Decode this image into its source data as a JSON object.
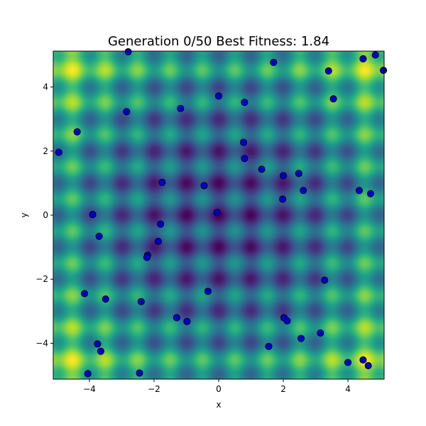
{
  "chart_data": {
    "type": "scatter",
    "title": "Generation 0/50   Best Fitness: 1.84",
    "xlabel": "x",
    "ylabel": "y",
    "xlim": [
      -5.12,
      5.12
    ],
    "ylim": [
      -5.12,
      5.12
    ],
    "grid": false,
    "background": {
      "type": "heatmap",
      "function": "rastrigin",
      "colormap": "viridis"
    },
    "x_ticks": [
      {
        "value": -4,
        "label": "−4"
      },
      {
        "value": -2,
        "label": "−2"
      },
      {
        "value": 0,
        "label": "0"
      },
      {
        "value": 2,
        "label": "2"
      },
      {
        "value": 4,
        "label": "4"
      }
    ],
    "y_ticks": [
      {
        "value": -4,
        "label": "−4"
      },
      {
        "value": -2,
        "label": "−2"
      },
      {
        "value": 0,
        "label": "0"
      },
      {
        "value": 2,
        "label": "2"
      },
      {
        "value": 4,
        "label": "4"
      }
    ],
    "marker_color": "#0000cd",
    "marker_edge_color": "#000000",
    "points": [
      {
        "x": -4.95,
        "y": 1.96
      },
      {
        "x": -4.38,
        "y": 2.6
      },
      {
        "x": -3.9,
        "y": 0.02
      },
      {
        "x": -3.7,
        "y": -0.66
      },
      {
        "x": -4.15,
        "y": -2.45
      },
      {
        "x": -3.5,
        "y": -2.62
      },
      {
        "x": -3.75,
        "y": -4.02
      },
      {
        "x": -3.65,
        "y": -4.25
      },
      {
        "x": -4.05,
        "y": -4.95
      },
      {
        "x": -2.8,
        "y": 5.1
      },
      {
        "x": -2.85,
        "y": 3.23
      },
      {
        "x": -1.75,
        "y": 1.02
      },
      {
        "x": -1.8,
        "y": -0.28
      },
      {
        "x": -1.87,
        "y": -0.82
      },
      {
        "x": -2.2,
        "y": -1.25
      },
      {
        "x": -2.22,
        "y": -1.32
      },
      {
        "x": -2.4,
        "y": -2.7
      },
      {
        "x": -2.45,
        "y": -4.93
      },
      {
        "x": -1.3,
        "y": -3.2
      },
      {
        "x": -0.98,
        "y": -3.32
      },
      {
        "x": -1.18,
        "y": 3.33
      },
      {
        "x": -0.45,
        "y": 0.92
      },
      {
        "x": -0.05,
        "y": 0.08
      },
      {
        "x": -0.33,
        "y": -2.38
      },
      {
        "x": 0.0,
        "y": 3.72
      },
      {
        "x": 0.8,
        "y": 3.52
      },
      {
        "x": 0.77,
        "y": 2.27
      },
      {
        "x": 0.8,
        "y": 1.77
      },
      {
        "x": 1.33,
        "y": 1.43
      },
      {
        "x": 1.7,
        "y": 4.77
      },
      {
        "x": 2.0,
        "y": 1.23
      },
      {
        "x": 1.98,
        "y": 0.5
      },
      {
        "x": 2.48,
        "y": 1.3
      },
      {
        "x": 2.62,
        "y": 0.77
      },
      {
        "x": 1.55,
        "y": -4.1
      },
      {
        "x": 2.02,
        "y": -3.2
      },
      {
        "x": 2.12,
        "y": -3.3
      },
      {
        "x": 2.55,
        "y": -3.85
      },
      {
        "x": 3.15,
        "y": -3.68
      },
      {
        "x": 3.28,
        "y": -2.03
      },
      {
        "x": 3.4,
        "y": 4.5
      },
      {
        "x": 3.55,
        "y": 3.63
      },
      {
        "x": 4.35,
        "y": 0.77
      },
      {
        "x": 4.7,
        "y": 0.67
      },
      {
        "x": 4.47,
        "y": 4.88
      },
      {
        "x": 4.85,
        "y": 5.0
      },
      {
        "x": 5.1,
        "y": 4.52
      },
      {
        "x": 4.0,
        "y": -4.6
      },
      {
        "x": 4.47,
        "y": -4.52
      },
      {
        "x": 4.63,
        "y": -4.7
      }
    ]
  }
}
